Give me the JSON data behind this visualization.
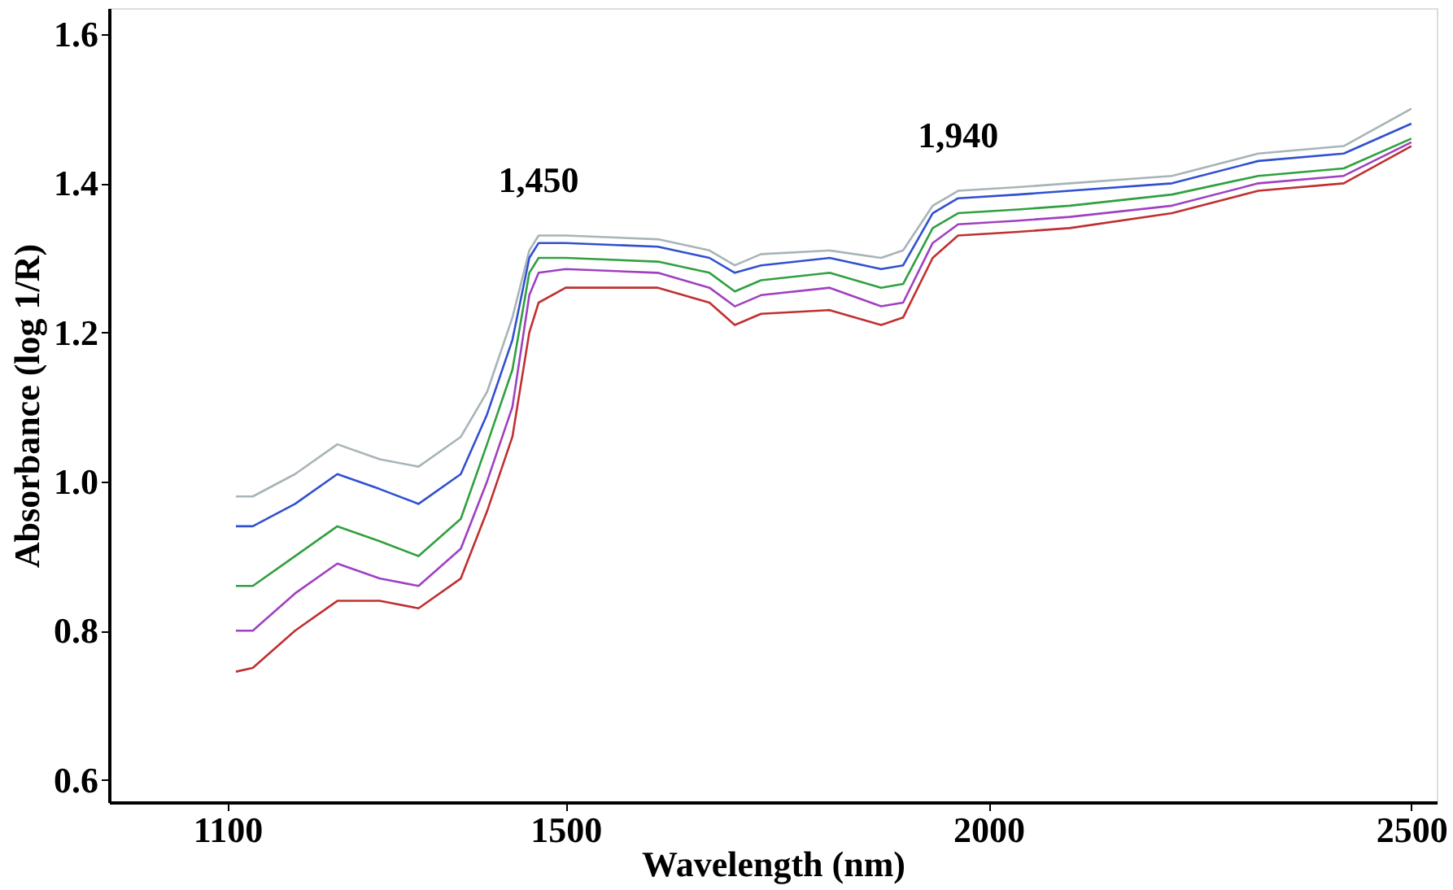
{
  "chart_data": {
    "type": "line",
    "xlabel": "Wavelength (nm)",
    "ylabel": "Absorbance (log 1/R)",
    "x": [
      1110,
      1130,
      1180,
      1230,
      1280,
      1326,
      1376,
      1407,
      1437,
      1457,
      1468,
      1500,
      1609,
      1670,
      1700,
      1731,
      1812,
      1873,
      1899,
      1934,
      1964,
      2035,
      2096,
      2217,
      2319,
      2420,
      2500
    ],
    "series": [
      {
        "color": "#a8b4b8",
        "values": [
          0.98,
          0.98,
          1.01,
          1.05,
          1.03,
          1.02,
          1.06,
          1.12,
          1.22,
          1.31,
          1.33,
          1.33,
          1.325,
          1.31,
          1.29,
          1.305,
          1.31,
          1.3,
          1.31,
          1.37,
          1.39,
          1.395,
          1.4,
          1.41,
          1.44,
          1.45,
          1.5
        ]
      },
      {
        "color": "#3050d0",
        "values": [
          0.94,
          0.94,
          0.97,
          1.01,
          0.99,
          0.97,
          1.01,
          1.09,
          1.19,
          1.3,
          1.32,
          1.32,
          1.315,
          1.3,
          1.28,
          1.29,
          1.3,
          1.285,
          1.29,
          1.36,
          1.38,
          1.385,
          1.39,
          1.4,
          1.43,
          1.44,
          1.48
        ]
      },
      {
        "color": "#30a040",
        "values": [
          0.86,
          0.86,
          0.9,
          0.94,
          0.92,
          0.9,
          0.95,
          1.05,
          1.15,
          1.28,
          1.3,
          1.3,
          1.295,
          1.28,
          1.255,
          1.27,
          1.28,
          1.26,
          1.265,
          1.34,
          1.36,
          1.365,
          1.37,
          1.385,
          1.41,
          1.42,
          1.46
        ]
      },
      {
        "color": "#a040c0",
        "values": [
          0.8,
          0.8,
          0.85,
          0.89,
          0.87,
          0.86,
          0.91,
          1.0,
          1.1,
          1.25,
          1.28,
          1.285,
          1.28,
          1.26,
          1.235,
          1.25,
          1.26,
          1.235,
          1.24,
          1.32,
          1.345,
          1.35,
          1.355,
          1.37,
          1.4,
          1.41,
          1.455
        ]
      },
      {
        "color": "#c03030",
        "values": [
          0.745,
          0.75,
          0.8,
          0.84,
          0.84,
          0.83,
          0.87,
          0.96,
          1.06,
          1.2,
          1.24,
          1.26,
          1.26,
          1.24,
          1.21,
          1.225,
          1.23,
          1.21,
          1.22,
          1.3,
          1.33,
          1.335,
          1.34,
          1.36,
          1.39,
          1.4,
          1.45
        ]
      }
    ],
    "annotations": [
      {
        "text": "1,450",
        "x": 1468,
        "y": 1.33
      },
      {
        "text": "1,940",
        "x": 1964,
        "y": 1.39
      }
    ],
    "xlim": [
      960,
      2530
    ],
    "xticks": [
      1100,
      1500,
      2000,
      2500
    ],
    "ylim": [
      0.57,
      1.635
    ],
    "yticks": [
      0.6,
      0.8,
      {
        "value": 1,
        "label": "1.0"
      },
      1.2,
      1.4,
      1.6
    ],
    "grid": false,
    "legend": false,
    "marker": "none",
    "line_style": "solid"
  }
}
